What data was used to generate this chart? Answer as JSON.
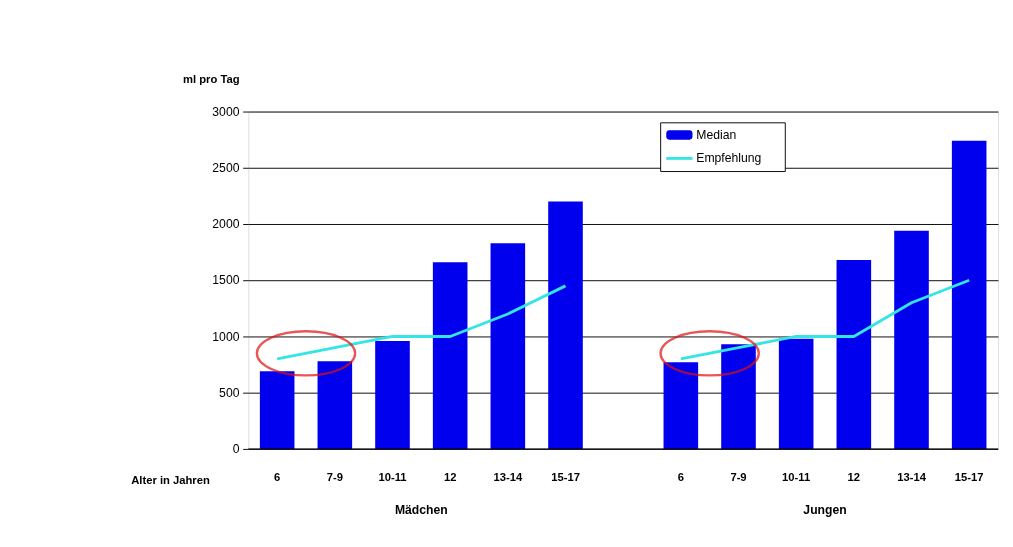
{
  "chart_data": {
    "type": "bar",
    "ylabel": "ml pro Tag",
    "xlabel": "Alter in Jahren",
    "categories": [
      "6",
      "7-9",
      "10-11",
      "12",
      "13-14",
      "15-17",
      null,
      "6",
      "7-9",
      "10-11",
      "12",
      "13-14",
      "15-17"
    ],
    "series": [
      {
        "name": "Median",
        "color": "#0000ee",
        "values": [
          690,
          780,
          960,
          1660,
          1830,
          2200,
          null,
          770,
          930,
          980,
          1680,
          1940,
          2740
        ]
      },
      {
        "name": "Empfehlung",
        "type": "line",
        "color": "#33e5e5",
        "values": [
          800,
          900,
          1000,
          1000,
          1200,
          1450,
          null,
          800,
          900,
          1000,
          1000,
          1300,
          1500
        ]
      }
    ],
    "annotations": [
      "Mädchen",
      "Jungen"
    ],
    "ylim": [
      0,
      3000
    ],
    "yticks": [
      0,
      500,
      1000,
      1500,
      2000,
      2500,
      3000
    ],
    "grid": "y",
    "legend": "top right"
  }
}
